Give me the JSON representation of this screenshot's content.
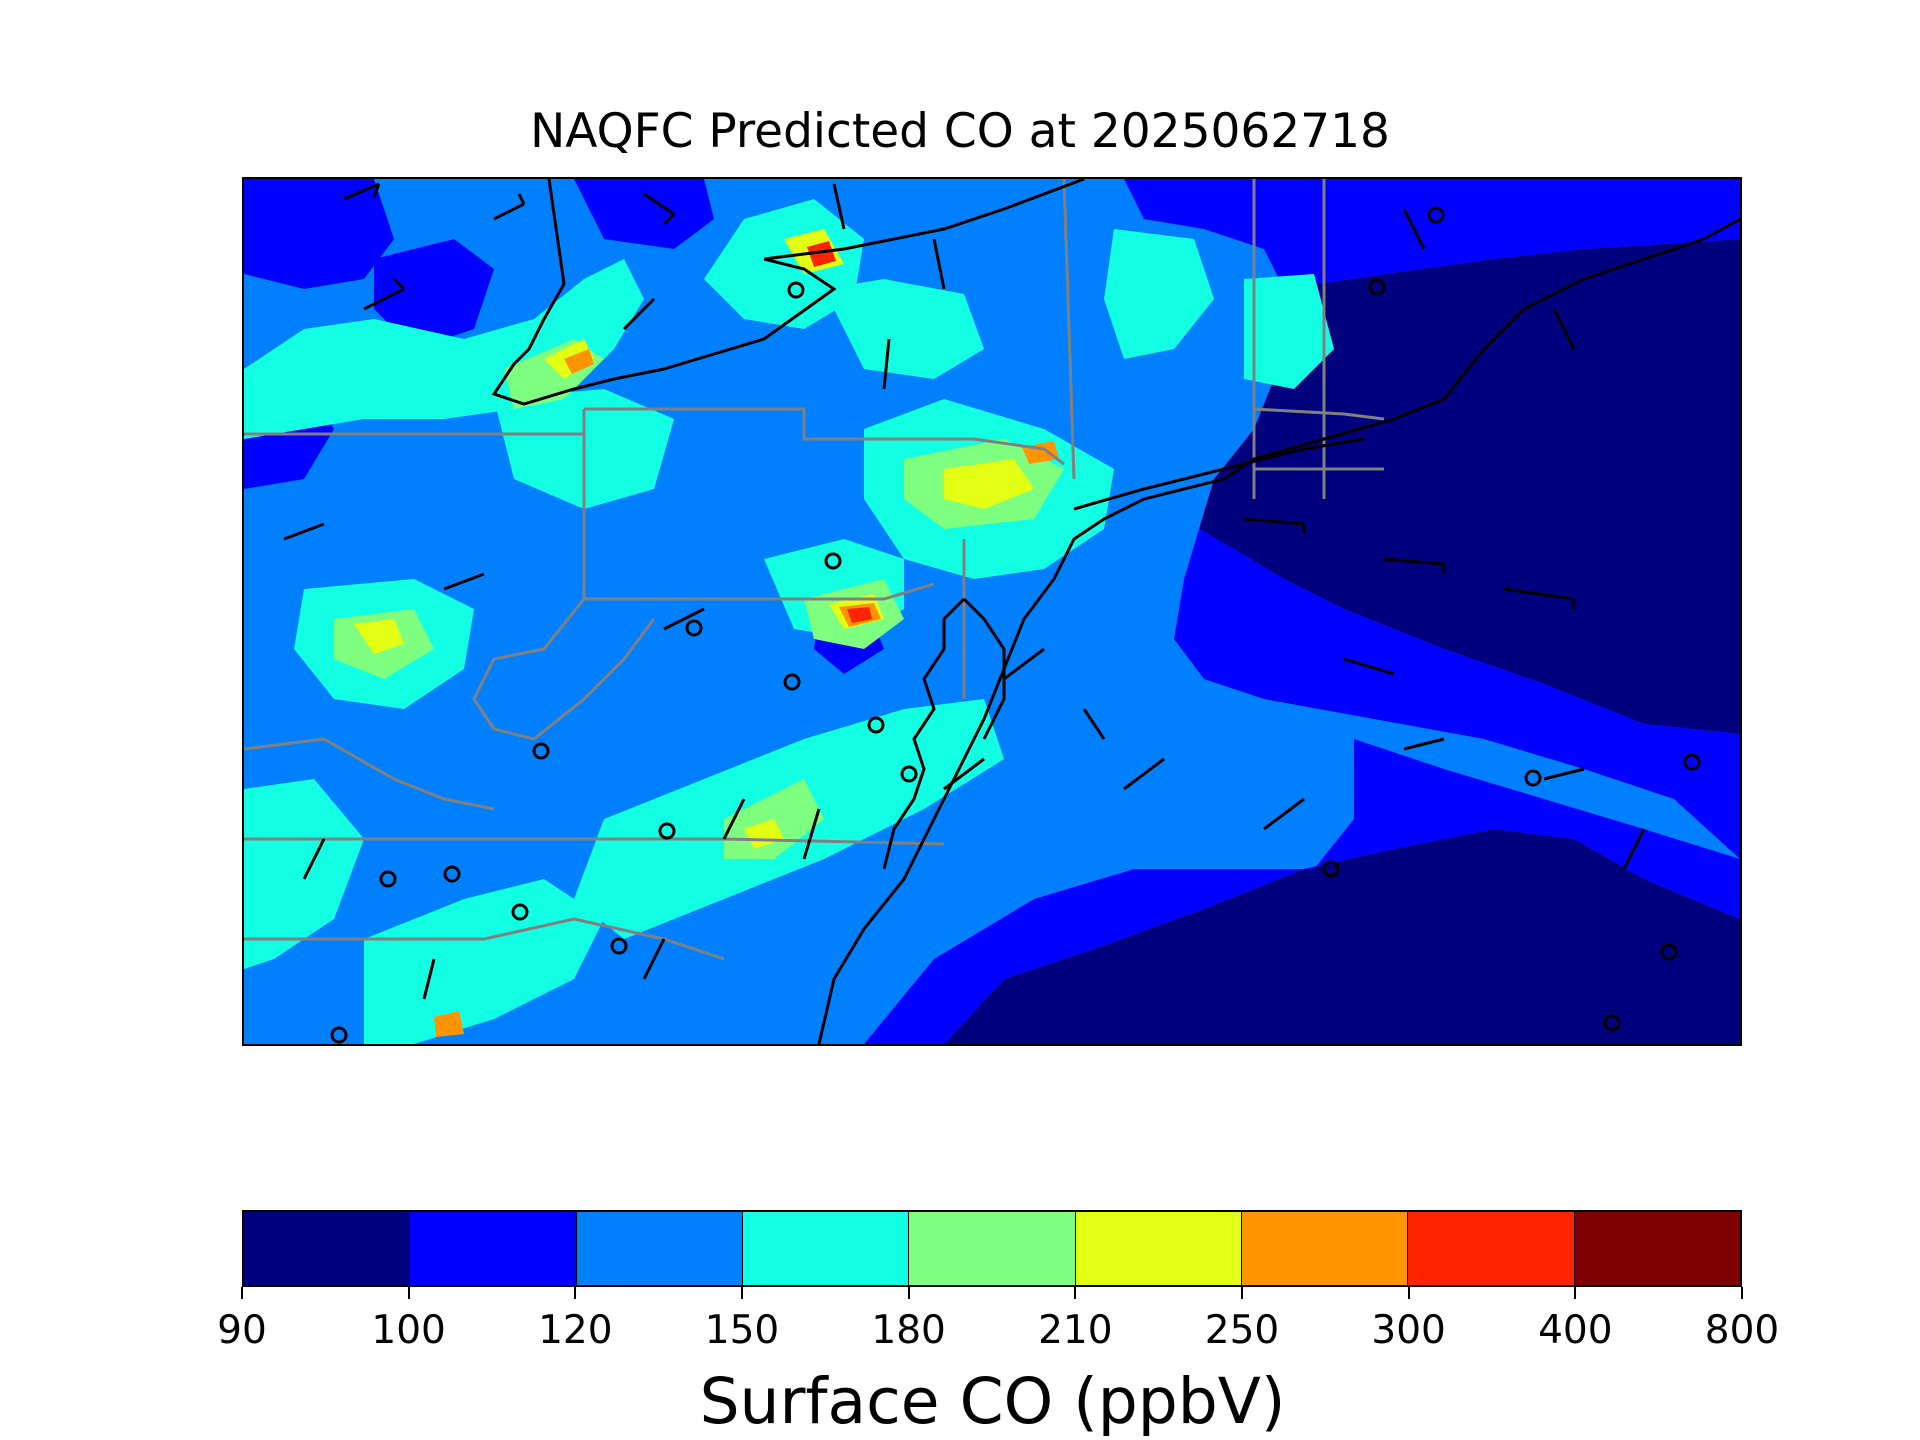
{
  "title": "NAQFC Predicted CO at 2025062718",
  "colorbar": {
    "label": "Surface CO (ppbV)",
    "ticks": [
      "90",
      "100",
      "120",
      "150",
      "180",
      "210",
      "250",
      "300",
      "400",
      "800"
    ],
    "colors": [
      "#00007f",
      "#0000ff",
      "#007fff",
      "#13ffe3",
      "#7fff7f",
      "#e3ff13",
      "#ff9300",
      "#ff2400",
      "#7f0000"
    ]
  },
  "map": {
    "background_level_color": "#007fff",
    "fill_colors": {
      "lt100": "#00007f",
      "100_120": "#0000ff",
      "120_150": "#007fff",
      "150_180": "#13ffe3",
      "180_210": "#7fff7f",
      "210_250": "#e3ff13",
      "250_300": "#ff9300",
      "300_400": "#ff2400"
    },
    "coastline_color": "#000000",
    "state_border_color": "#808080",
    "wind_barb_color": "#000000",
    "calm_marker": "circle"
  }
}
